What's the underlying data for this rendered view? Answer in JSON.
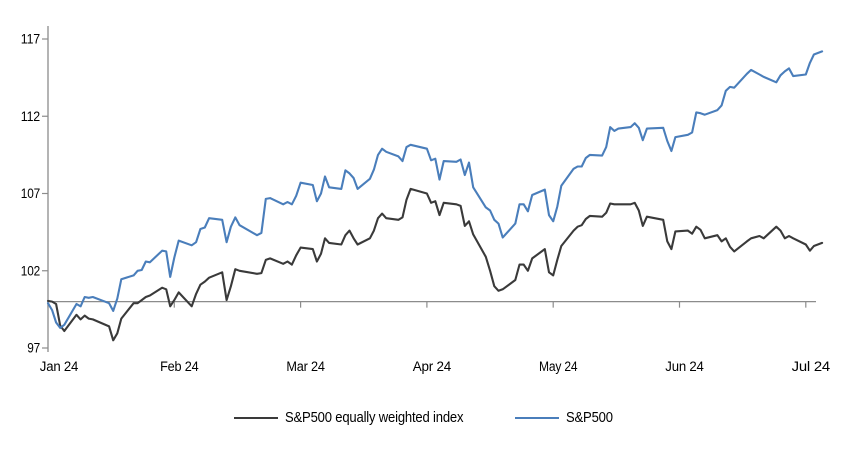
{
  "chart_data": {
    "type": "line",
    "title": "",
    "xlabel": "",
    "ylabel": "",
    "x_unit": "date",
    "x_tick_labels": [
      "Jan 24",
      "Feb 24",
      "Mar 24",
      "Apr 24",
      "May 24",
      "Jun 24",
      "Jul 24"
    ],
    "y_tick_labels": [
      "97",
      "102",
      "107",
      "112",
      "117"
    ],
    "y_tick_values": [
      97,
      102,
      107,
      112,
      117
    ],
    "ylim": [
      97,
      117
    ],
    "baseline_value": 100,
    "grid": false,
    "legend_position": "bottom",
    "axis_color": "#8c8c8c",
    "text_color": "#000000",
    "dates": [
      "2024-01-01",
      "2024-01-02",
      "2024-01-03",
      "2024-01-04",
      "2024-01-05",
      "2024-01-08",
      "2024-01-09",
      "2024-01-10",
      "2024-01-11",
      "2024-01-12",
      "2024-01-16",
      "2024-01-17",
      "2024-01-18",
      "2024-01-19",
      "2024-01-22",
      "2024-01-23",
      "2024-01-24",
      "2024-01-25",
      "2024-01-26",
      "2024-01-29",
      "2024-01-30",
      "2024-01-31",
      "2024-02-01",
      "2024-02-02",
      "2024-02-05",
      "2024-02-06",
      "2024-02-07",
      "2024-02-08",
      "2024-02-09",
      "2024-02-12",
      "2024-02-13",
      "2024-02-14",
      "2024-02-15",
      "2024-02-16",
      "2024-02-20",
      "2024-02-21",
      "2024-02-22",
      "2024-02-23",
      "2024-02-26",
      "2024-02-27",
      "2024-02-28",
      "2024-02-29",
      "2024-03-01",
      "2024-03-04",
      "2024-03-05",
      "2024-03-06",
      "2024-03-07",
      "2024-03-08",
      "2024-03-11",
      "2024-03-12",
      "2024-03-13",
      "2024-03-14",
      "2024-03-15",
      "2024-03-18",
      "2024-03-19",
      "2024-03-20",
      "2024-03-21",
      "2024-03-22",
      "2024-03-25",
      "2024-03-26",
      "2024-03-27",
      "2024-03-28",
      "2024-04-01",
      "2024-04-02",
      "2024-04-03",
      "2024-04-04",
      "2024-04-05",
      "2024-04-08",
      "2024-04-09",
      "2024-04-10",
      "2024-04-11",
      "2024-04-12",
      "2024-04-15",
      "2024-04-16",
      "2024-04-17",
      "2024-04-18",
      "2024-04-19",
      "2024-04-22",
      "2024-04-23",
      "2024-04-24",
      "2024-04-25",
      "2024-04-26",
      "2024-04-29",
      "2024-04-30",
      "2024-05-01",
      "2024-05-02",
      "2024-05-03",
      "2024-05-06",
      "2024-05-07",
      "2024-05-08",
      "2024-05-09",
      "2024-05-10",
      "2024-05-13",
      "2024-05-14",
      "2024-05-15",
      "2024-05-16",
      "2024-05-17",
      "2024-05-20",
      "2024-05-21",
      "2024-05-22",
      "2024-05-23",
      "2024-05-24",
      "2024-05-28",
      "2024-05-29",
      "2024-05-30",
      "2024-05-31",
      "2024-06-03",
      "2024-06-04",
      "2024-06-05",
      "2024-06-06",
      "2024-06-07",
      "2024-06-10",
      "2024-06-11",
      "2024-06-12",
      "2024-06-13",
      "2024-06-14",
      "2024-06-17",
      "2024-06-18",
      "2024-06-20",
      "2024-06-21",
      "2024-06-24",
      "2024-06-25",
      "2024-06-26",
      "2024-06-27",
      "2024-06-28",
      "2024-07-01",
      "2024-07-02",
      "2024-07-03",
      "2024-07-05"
    ],
    "series": [
      {
        "name": "S&P500 equally weighted index",
        "color": "#3a3a3a",
        "values": [
          100.05,
          100.0,
          99.85,
          98.45,
          98.1,
          99.15,
          98.85,
          99.1,
          98.9,
          98.85,
          98.4,
          97.5,
          97.95,
          98.9,
          99.9,
          99.9,
          100.1,
          100.3,
          100.4,
          100.9,
          100.8,
          99.7,
          100.1,
          100.6,
          99.7,
          100.5,
          101.1,
          101.3,
          101.55,
          101.9,
          100.1,
          101.0,
          102.1,
          102.0,
          101.8,
          101.85,
          102.7,
          102.8,
          102.45,
          102.6,
          102.4,
          103.0,
          103.5,
          103.4,
          102.6,
          103.1,
          104.1,
          103.8,
          103.7,
          104.3,
          104.6,
          104.1,
          103.7,
          104.1,
          104.6,
          105.4,
          105.7,
          105.4,
          105.3,
          105.45,
          106.6,
          107.3,
          107.0,
          106.4,
          106.5,
          105.6,
          106.4,
          106.3,
          106.2,
          104.9,
          105.2,
          104.35,
          102.9,
          102.0,
          101.0,
          100.7,
          100.8,
          101.4,
          102.4,
          102.4,
          102.0,
          102.8,
          103.4,
          101.9,
          101.7,
          102.7,
          103.6,
          104.6,
          104.85,
          104.95,
          105.35,
          105.55,
          105.5,
          105.75,
          106.35,
          106.3,
          106.3,
          106.3,
          106.4,
          105.9,
          104.9,
          105.5,
          105.3,
          103.9,
          103.4,
          104.55,
          104.6,
          104.4,
          104.85,
          104.65,
          104.1,
          104.3,
          103.9,
          104.1,
          103.55,
          103.25,
          103.9,
          104.1,
          104.25,
          104.1,
          104.85,
          104.6,
          104.1,
          104.25,
          104.1,
          103.7,
          103.3,
          103.6,
          103.8
        ]
      },
      {
        "name": "S&P500",
        "color": "#4a7ebb",
        "values": [
          99.9,
          99.45,
          98.65,
          98.3,
          98.5,
          99.85,
          99.7,
          100.3,
          100.25,
          100.3,
          99.9,
          99.4,
          100.2,
          101.45,
          101.7,
          102.0,
          102.05,
          102.6,
          102.55,
          103.3,
          103.25,
          101.6,
          102.85,
          103.95,
          103.65,
          103.85,
          104.7,
          104.8,
          105.4,
          105.3,
          103.85,
          104.85,
          105.45,
          104.95,
          104.3,
          104.45,
          106.65,
          106.7,
          106.3,
          106.45,
          106.3,
          106.85,
          107.7,
          107.55,
          106.5,
          107.0,
          108.1,
          107.4,
          107.3,
          108.5,
          108.3,
          108.0,
          107.3,
          107.95,
          108.55,
          109.5,
          109.9,
          109.7,
          109.4,
          109.1,
          110.0,
          110.15,
          109.9,
          109.15,
          109.25,
          107.9,
          109.1,
          109.05,
          109.2,
          108.2,
          109.0,
          107.4,
          106.1,
          105.9,
          105.3,
          105.05,
          104.15,
          105.05,
          106.3,
          106.3,
          105.85,
          106.9,
          107.25,
          105.6,
          105.2,
          106.15,
          107.5,
          108.6,
          108.75,
          108.75,
          109.3,
          109.5,
          109.45,
          110.0,
          111.3,
          111.05,
          111.2,
          111.3,
          111.55,
          111.25,
          110.45,
          111.2,
          111.25,
          110.4,
          109.75,
          110.65,
          110.8,
          110.95,
          112.25,
          112.2,
          112.1,
          112.4,
          112.7,
          113.65,
          113.9,
          113.85,
          114.75,
          115.0,
          114.7,
          114.55,
          114.2,
          114.65,
          114.9,
          115.1,
          114.6,
          114.7,
          115.45,
          116.0,
          116.2
        ]
      }
    ]
  },
  "legend": {
    "items": [
      {
        "label": "S&P500 equally weighted index",
        "color": "#3a3a3a"
      },
      {
        "label": "S&P500",
        "color": "#4a7ebb"
      }
    ]
  }
}
